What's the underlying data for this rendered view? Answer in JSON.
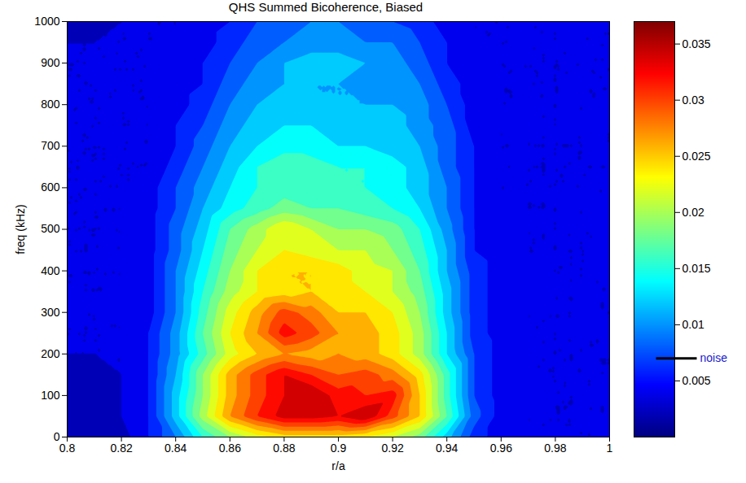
{
  "chart_data": {
    "type": "contour",
    "title": "QHS Summed Bicoherence, Biased",
    "x_label": "r/a",
    "y_label": "freq (kHz)",
    "xlim": [
      0.8,
      1
    ],
    "xticks": [
      0.8,
      0.82,
      0.84,
      0.86,
      0.88,
      0.9,
      0.92,
      0.94,
      0.96,
      0.98,
      1
    ],
    "ylim": [
      0,
      1000
    ],
    "yticks": [
      0,
      100,
      200,
      300,
      400,
      500,
      600,
      700,
      800,
      900,
      1000
    ],
    "x": [
      0.8,
      0.81,
      0.82,
      0.83,
      0.84,
      0.85,
      0.86,
      0.87,
      0.88,
      0.89,
      0.9,
      0.91,
      0.92,
      0.93,
      0.94,
      0.95,
      0.96,
      0.97,
      0.98,
      0.99,
      1
    ],
    "y": [
      0,
      50,
      100,
      150,
      200,
      250,
      300,
      350,
      400,
      450,
      500,
      550,
      600,
      650,
      700,
      750,
      800,
      850,
      900,
      950,
      1000
    ],
    "z": [
      [
        0.003,
        0.003,
        0.003,
        0.006,
        0.01,
        0.016,
        0.02,
        0.023,
        0.025,
        0.025,
        0.025,
        0.024,
        0.022,
        0.019,
        0.013,
        0.007,
        0.005,
        0.004,
        0.004,
        0.004,
        0.004
      ],
      [
        0.003,
        0.003,
        0.004,
        0.006,
        0.013,
        0.021,
        0.028,
        0.032,
        0.035,
        0.035,
        0.034,
        0.036,
        0.031,
        0.026,
        0.018,
        0.009,
        0.005,
        0.004,
        0.004,
        0.004,
        0.004
      ],
      [
        0.003,
        0.003,
        0.004,
        0.006,
        0.013,
        0.02,
        0.027,
        0.031,
        0.034,
        0.036,
        0.033,
        0.032,
        0.033,
        0.026,
        0.017,
        0.008,
        0.005,
        0.004,
        0.004,
        0.004,
        0.004
      ],
      [
        0.003,
        0.003,
        0.004,
        0.006,
        0.012,
        0.02,
        0.027,
        0.031,
        0.034,
        0.032,
        0.03,
        0.031,
        0.029,
        0.025,
        0.017,
        0.008,
        0.005,
        0.004,
        0.004,
        0.004,
        0.004
      ],
      [
        0.004,
        0.004,
        0.004,
        0.006,
        0.011,
        0.017,
        0.023,
        0.026,
        0.028,
        0.027,
        0.028,
        0.027,
        0.025,
        0.021,
        0.014,
        0.008,
        0.005,
        0.004,
        0.004,
        0.004,
        0.004
      ],
      [
        0.004,
        0.004,
        0.004,
        0.006,
        0.011,
        0.018,
        0.024,
        0.028,
        0.033,
        0.031,
        0.028,
        0.027,
        0.025,
        0.021,
        0.014,
        0.007,
        0.005,
        0.004,
        0.004,
        0.004,
        0.004
      ],
      [
        0.004,
        0.004,
        0.004,
        0.005,
        0.01,
        0.017,
        0.023,
        0.027,
        0.031,
        0.029,
        0.026,
        0.026,
        0.024,
        0.02,
        0.013,
        0.007,
        0.005,
        0.004,
        0.004,
        0.004,
        0.004
      ],
      [
        0.004,
        0.004,
        0.004,
        0.005,
        0.01,
        0.016,
        0.021,
        0.024,
        0.025,
        0.026,
        0.025,
        0.024,
        0.022,
        0.019,
        0.013,
        0.007,
        0.005,
        0.004,
        0.004,
        0.004,
        0.004
      ],
      [
        0.004,
        0.004,
        0.004,
        0.005,
        0.01,
        0.015,
        0.02,
        0.024,
        0.026,
        0.026,
        0.025,
        0.023,
        0.022,
        0.018,
        0.012,
        0.007,
        0.005,
        0.004,
        0.004,
        0.004,
        0.004
      ],
      [
        0.004,
        0.004,
        0.004,
        0.005,
        0.009,
        0.014,
        0.019,
        0.022,
        0.024,
        0.023,
        0.022,
        0.022,
        0.02,
        0.017,
        0.012,
        0.006,
        0.005,
        0.004,
        0.004,
        0.004,
        0.004
      ],
      [
        0.004,
        0.004,
        0.004,
        0.005,
        0.009,
        0.013,
        0.018,
        0.021,
        0.024,
        0.022,
        0.02,
        0.02,
        0.019,
        0.016,
        0.011,
        0.006,
        0.005,
        0.004,
        0.004,
        0.004,
        0.004
      ],
      [
        0.004,
        0.004,
        0.004,
        0.005,
        0.008,
        0.012,
        0.015,
        0.017,
        0.019,
        0.018,
        0.018,
        0.017,
        0.016,
        0.014,
        0.01,
        0.006,
        0.004,
        0.004,
        0.004,
        0.004,
        0.004
      ],
      [
        0.004,
        0.004,
        0.004,
        0.005,
        0.008,
        0.011,
        0.014,
        0.016,
        0.017,
        0.016,
        0.017,
        0.016,
        0.015,
        0.013,
        0.01,
        0.006,
        0.004,
        0.004,
        0.004,
        0.004,
        0.004
      ],
      [
        0.004,
        0.004,
        0.004,
        0.004,
        0.007,
        0.01,
        0.013,
        0.016,
        0.018,
        0.017,
        0.016,
        0.016,
        0.015,
        0.013,
        0.009,
        0.006,
        0.004,
        0.004,
        0.004,
        0.004,
        0.004
      ],
      [
        0.004,
        0.004,
        0.004,
        0.004,
        0.006,
        0.009,
        0.012,
        0.014,
        0.015,
        0.015,
        0.014,
        0.014,
        0.013,
        0.012,
        0.009,
        0.006,
        0.004,
        0.004,
        0.004,
        0.004,
        0.004
      ],
      [
        0.004,
        0.004,
        0.004,
        0.004,
        0.006,
        0.008,
        0.011,
        0.013,
        0.014,
        0.014,
        0.013,
        0.013,
        0.013,
        0.011,
        0.009,
        0.005,
        0.004,
        0.004,
        0.004,
        0.004,
        0.004
      ],
      [
        0.004,
        0.004,
        0.004,
        0.004,
        0.005,
        0.007,
        0.01,
        0.012,
        0.013,
        0.013,
        0.012,
        0.012,
        0.012,
        0.011,
        0.008,
        0.005,
        0.004,
        0.004,
        0.004,
        0.004,
        0.004
      ],
      [
        0.004,
        0.004,
        0.004,
        0.004,
        0.005,
        0.006,
        0.009,
        0.011,
        0.012,
        0.012,
        0.012,
        0.011,
        0.011,
        0.01,
        0.007,
        0.005,
        0.004,
        0.004,
        0.004,
        0.004,
        0.004
      ],
      [
        0.004,
        0.004,
        0.004,
        0.004,
        0.005,
        0.006,
        0.008,
        0.01,
        0.012,
        0.013,
        0.013,
        0.012,
        0.011,
        0.009,
        0.006,
        0.005,
        0.004,
        0.004,
        0.004,
        0.004,
        0.004
      ],
      [
        0.004,
        0.004,
        0.004,
        0.004,
        0.004,
        0.005,
        0.007,
        0.009,
        0.01,
        0.011,
        0.011,
        0.01,
        0.01,
        0.008,
        0.006,
        0.004,
        0.004,
        0.004,
        0.004,
        0.004,
        0.004
      ],
      [
        0.003,
        0.003,
        0.004,
        0.004,
        0.004,
        0.005,
        0.006,
        0.008,
        0.009,
        0.01,
        0.01,
        0.009,
        0.008,
        0.007,
        0.005,
        0.004,
        0.004,
        0.004,
        0.004,
        0.004,
        0.004
      ]
    ],
    "zlim": [
      0,
      0.037
    ],
    "zticks": [
      0.005,
      0.01,
      0.015,
      0.02,
      0.025,
      0.03,
      0.035
    ],
    "color": "jet",
    "annotations": [
      {
        "text": "noise",
        "value": 0.007
      }
    ]
  }
}
